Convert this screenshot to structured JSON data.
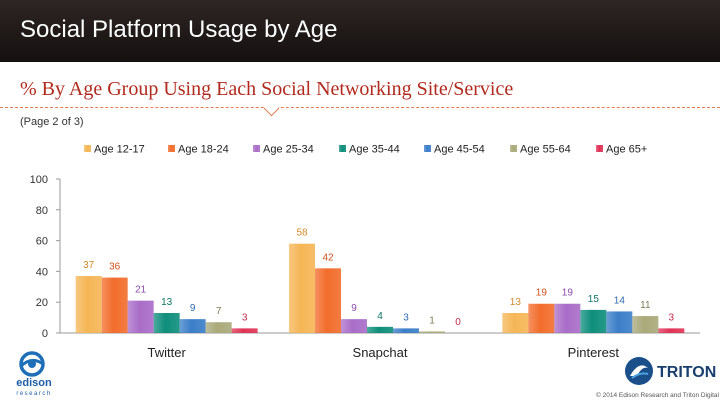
{
  "header": {
    "title": "Social Platform Usage by Age"
  },
  "subtitle": "% By Age Group Using Each Social Networking Site/Service",
  "page_note": "(Page 2 of 3)",
  "footer": {
    "copyright": "© 2014 Edison Research and Triton Digital",
    "edison_logo_text": "edison",
    "edison_logo_subtext": "research",
    "triton_logo_text": "TRITON"
  },
  "colors": {
    "Age 12-17": "#f5b656",
    "Age 18-24": "#f26d2c",
    "Age 25-34": "#a96dc8",
    "Age 35-44": "#0f8e7c",
    "Age 45-54": "#3b7ec8",
    "Age 55-64": "#a9a97a",
    "Age 65+": "#e03356"
  },
  "label_colors": {
    "Age 12-17": "#d08a2a",
    "Age 18-24": "#d0501c",
    "Age 25-34": "#8b4bab",
    "Age 35-44": "#0c7466",
    "Age 45-54": "#2f6ab0",
    "Age 55-64": "#7d7d55",
    "Age 65+": "#c42a4a"
  },
  "chart_data": {
    "type": "bar",
    "categories": [
      "Twitter",
      "Snapchat",
      "Pinterest"
    ],
    "series": [
      {
        "name": "Age 12-17",
        "values": [
          37,
          58,
          13
        ]
      },
      {
        "name": "Age 18-24",
        "values": [
          36,
          42,
          19
        ]
      },
      {
        "name": "Age 25-34",
        "values": [
          21,
          9,
          19
        ]
      },
      {
        "name": "Age 35-44",
        "values": [
          13,
          4,
          15
        ]
      },
      {
        "name": "Age 45-54",
        "values": [
          9,
          3,
          14
        ]
      },
      {
        "name": "Age 55-64",
        "values": [
          7,
          1,
          11
        ]
      },
      {
        "name": "Age 65+",
        "values": [
          3,
          0,
          3
        ]
      }
    ],
    "yticks": [
      0,
      20,
      40,
      60,
      80,
      100
    ],
    "ylim": [
      0,
      100
    ],
    "legend": "top",
    "grid": false,
    "data_labels": true
  }
}
